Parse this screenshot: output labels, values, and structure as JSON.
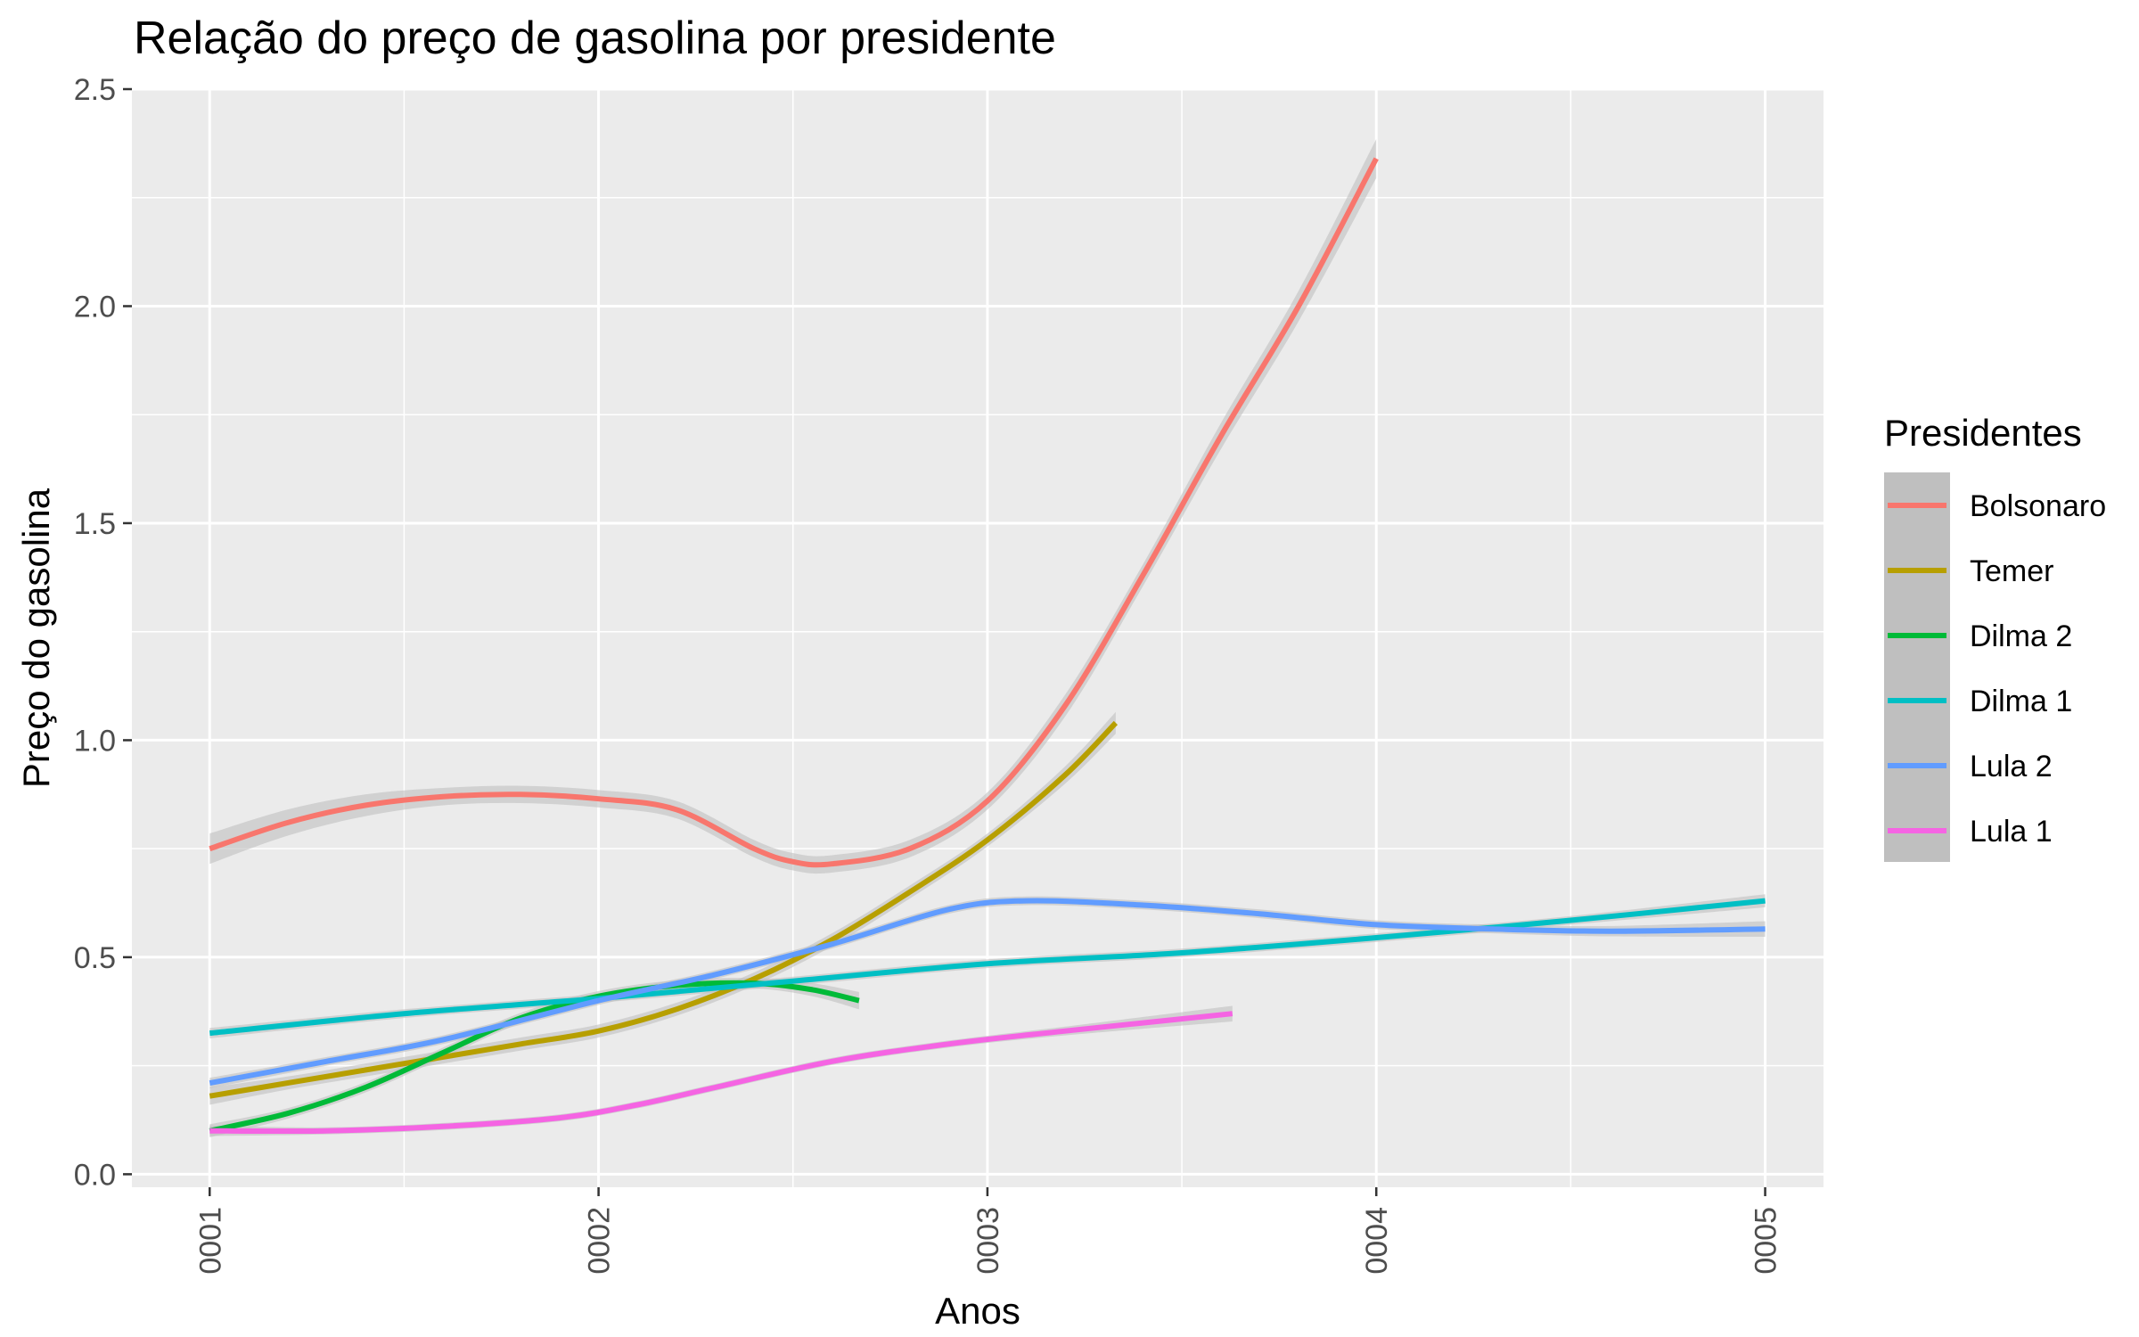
{
  "chart_data": {
    "type": "line",
    "title": "Relação do preço de gasolina por presidente",
    "xlabel": "Anos",
    "ylabel": "Preço do gasolina",
    "xlim": [
      0.8,
      5.15
    ],
    "ylim": [
      -0.03,
      2.5
    ],
    "x_ticks": [
      1,
      2,
      3,
      4,
      5
    ],
    "x_tick_labels": [
      "0001",
      "0002",
      "0003",
      "0004",
      "0005"
    ],
    "y_ticks": [
      0.0,
      0.5,
      1.0,
      1.5,
      2.0,
      2.5
    ],
    "y_tick_labels": [
      "0.0",
      "0.5",
      "1.0",
      "1.5",
      "2.0",
      "2.5"
    ],
    "grid": true,
    "legend_position": "right",
    "legend_title": "Presidentes",
    "panel_background": "#ebebeb",
    "ribbon_color": "#bfbfbf",
    "series": [
      {
        "name": "Bolsonaro",
        "color": "#F8766D",
        "x": [
          1.0,
          1.2,
          1.4,
          1.6,
          1.8,
          2.0,
          2.2,
          2.4,
          2.5,
          2.6,
          2.8,
          3.0,
          3.2,
          3.4,
          3.6,
          3.8,
          4.0
        ],
        "y": [
          0.75,
          0.81,
          0.85,
          0.87,
          0.875,
          0.865,
          0.84,
          0.75,
          0.72,
          0.715,
          0.75,
          0.86,
          1.08,
          1.38,
          1.7,
          2.0,
          2.34
        ],
        "band": [
          0.035,
          0.03,
          0.025,
          0.02,
          0.02,
          0.02,
          0.02,
          0.02,
          0.02,
          0.02,
          0.02,
          0.02,
          0.025,
          0.025,
          0.03,
          0.035,
          0.045
        ]
      },
      {
        "name": "Temer",
        "color": "#B79F00",
        "x": [
          1.0,
          1.2,
          1.4,
          1.6,
          1.8,
          2.0,
          2.2,
          2.4,
          2.6,
          2.8,
          3.0,
          3.2,
          3.33
        ],
        "y": [
          0.18,
          0.21,
          0.24,
          0.27,
          0.3,
          0.33,
          0.38,
          0.45,
          0.54,
          0.65,
          0.77,
          0.92,
          1.04
        ],
        "band": [
          0.02,
          0.015,
          0.015,
          0.015,
          0.015,
          0.015,
          0.015,
          0.015,
          0.015,
          0.015,
          0.015,
          0.02,
          0.025
        ]
      },
      {
        "name": "Dilma 2",
        "color": "#00BA38",
        "x": [
          1.0,
          1.2,
          1.4,
          1.6,
          1.8,
          2.0,
          2.2,
          2.4,
          2.55,
          2.67
        ],
        "y": [
          0.1,
          0.14,
          0.2,
          0.28,
          0.36,
          0.41,
          0.435,
          0.44,
          0.425,
          0.4
        ],
        "band": [
          0.015,
          0.012,
          0.012,
          0.012,
          0.012,
          0.012,
          0.012,
          0.012,
          0.015,
          0.02
        ]
      },
      {
        "name": "Dilma 1",
        "color": "#00BFC4",
        "x": [
          1.0,
          1.5,
          2.0,
          2.5,
          3.0,
          3.5,
          4.0,
          4.5,
          5.0
        ],
        "y": [
          0.325,
          0.37,
          0.405,
          0.445,
          0.485,
          0.51,
          0.545,
          0.585,
          0.63
        ],
        "band": [
          0.012,
          0.01,
          0.01,
          0.01,
          0.01,
          0.01,
          0.01,
          0.01,
          0.015
        ]
      },
      {
        "name": "Lula 2",
        "color": "#619CFF",
        "x": [
          1.0,
          1.3,
          1.6,
          2.0,
          2.3,
          2.6,
          2.9,
          3.1,
          3.4,
          3.7,
          4.0,
          4.3,
          4.6,
          5.0
        ],
        "y": [
          0.21,
          0.26,
          0.31,
          0.4,
          0.46,
          0.53,
          0.61,
          0.63,
          0.62,
          0.6,
          0.575,
          0.565,
          0.56,
          0.565
        ],
        "band": [
          0.012,
          0.01,
          0.01,
          0.01,
          0.01,
          0.01,
          0.01,
          0.01,
          0.01,
          0.01,
          0.01,
          0.01,
          0.012,
          0.018
        ]
      },
      {
        "name": "Lula 1",
        "color": "#F564E3",
        "x": [
          1.0,
          1.3,
          1.6,
          1.9,
          2.1,
          2.3,
          2.6,
          2.9,
          3.2,
          3.63
        ],
        "y": [
          0.1,
          0.1,
          0.11,
          0.13,
          0.16,
          0.2,
          0.26,
          0.3,
          0.33,
          0.37
        ],
        "band": [
          0.012,
          0.008,
          0.008,
          0.008,
          0.008,
          0.008,
          0.008,
          0.008,
          0.01,
          0.018
        ]
      }
    ]
  }
}
